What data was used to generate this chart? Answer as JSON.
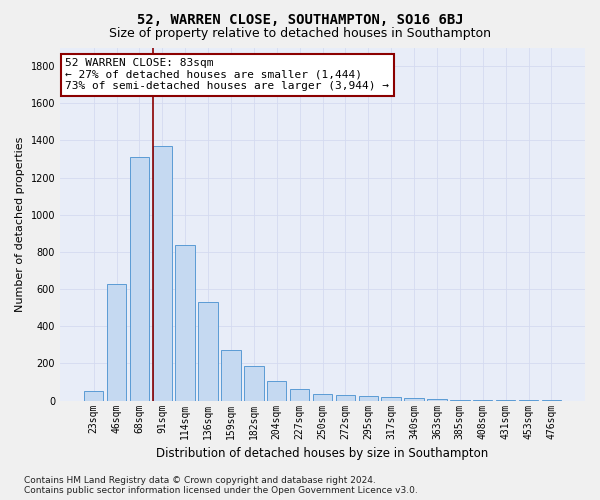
{
  "title": "52, WARREN CLOSE, SOUTHAMPTON, SO16 6BJ",
  "subtitle": "Size of property relative to detached houses in Southampton",
  "xlabel": "Distribution of detached houses by size in Southampton",
  "ylabel": "Number of detached properties",
  "categories": [
    "23sqm",
    "46sqm",
    "68sqm",
    "91sqm",
    "114sqm",
    "136sqm",
    "159sqm",
    "182sqm",
    "204sqm",
    "227sqm",
    "250sqm",
    "272sqm",
    "295sqm",
    "317sqm",
    "340sqm",
    "363sqm",
    "385sqm",
    "408sqm",
    "431sqm",
    "453sqm",
    "476sqm"
  ],
  "values": [
    50,
    630,
    1310,
    1370,
    840,
    530,
    270,
    185,
    105,
    65,
    35,
    30,
    25,
    20,
    15,
    10,
    5,
    5,
    3,
    3,
    2
  ],
  "bar_color": "#c5d9f1",
  "bar_edge_color": "#5b9bd5",
  "vline_color": "#8b0000",
  "annotation_line1": "52 WARREN CLOSE: 83sqm",
  "annotation_line2": "← 27% of detached houses are smaller (1,444)",
  "annotation_line3": "73% of semi-detached houses are larger (3,944) →",
  "annotation_box_color": "#ffffff",
  "annotation_box_edge_color": "#8b0000",
  "ylim": [
    0,
    1900
  ],
  "yticks": [
    0,
    200,
    400,
    600,
    800,
    1000,
    1200,
    1400,
    1600,
    1800
  ],
  "grid_color": "#d4daf0",
  "background_color": "#e8edf8",
  "fig_background_color": "#f0f0f0",
  "footer_line1": "Contains HM Land Registry data © Crown copyright and database right 2024.",
  "footer_line2": "Contains public sector information licensed under the Open Government Licence v3.0.",
  "title_fontsize": 10,
  "subtitle_fontsize": 9,
  "xlabel_fontsize": 8.5,
  "ylabel_fontsize": 8,
  "tick_fontsize": 7,
  "annotation_fontsize": 8,
  "footer_fontsize": 6.5
}
